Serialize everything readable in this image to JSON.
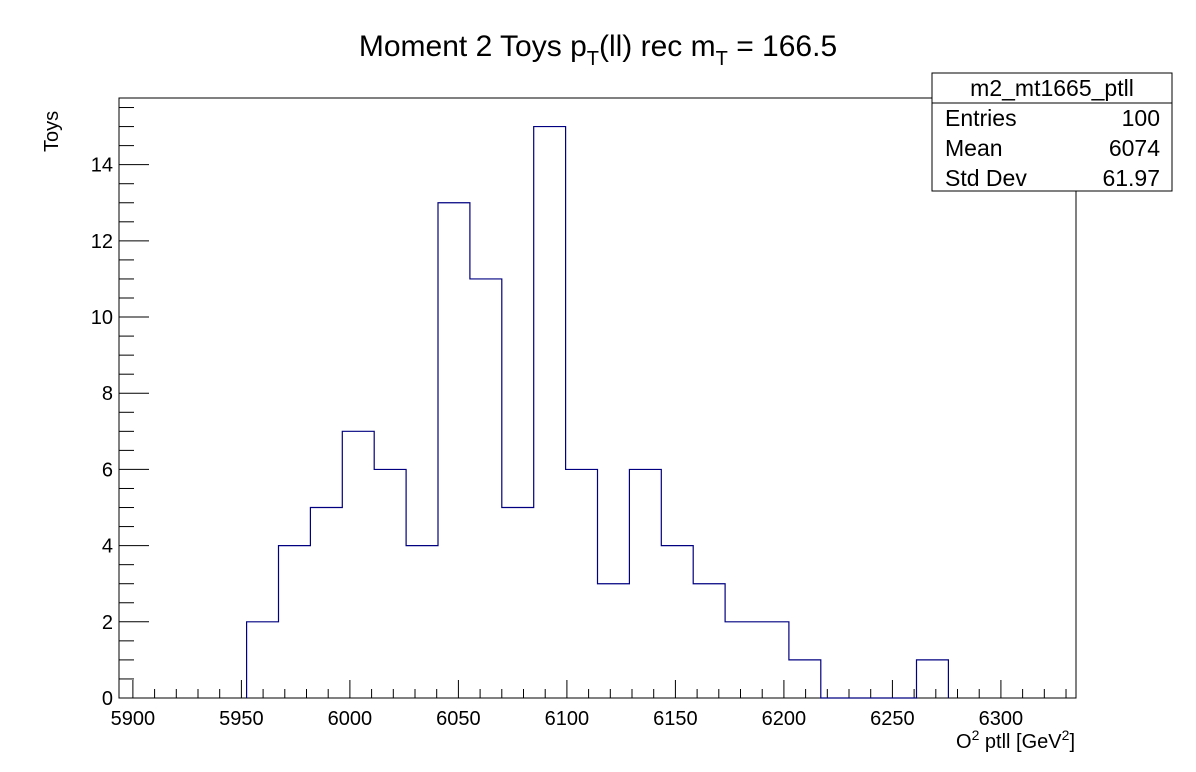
{
  "chart_data": {
    "type": "bar",
    "title": {
      "part1": "Moment 2 Toys  p",
      "sub1": "T",
      "part2": "(ll) rec  m",
      "sub2": "T",
      "part3": " = 166.5"
    },
    "xlabel": {
      "pre": "O",
      "sup1": "2",
      "mid": " ptll [GeV",
      "sup2": "2",
      "post": "]"
    },
    "ylabel": "Toys",
    "xlim": [
      5893.6,
      6334.6
    ],
    "ylim": [
      0,
      15.75
    ],
    "bin_edges": [
      5952.4,
      5967.1,
      5981.8,
      5996.5,
      6011.2,
      6025.9,
      6040.6,
      6055.3,
      6070.0,
      6084.7,
      6099.4,
      6114.1,
      6128.8,
      6143.5,
      6158.2,
      6172.9,
      6187.6,
      6202.3,
      6217.0,
      6231.7,
      6246.4,
      6261.1,
      6275.8
    ],
    "values": [
      2,
      4,
      5,
      7,
      6,
      4,
      13,
      11,
      5,
      15,
      6,
      3,
      6,
      4,
      3,
      2,
      2,
      1,
      0,
      0,
      0,
      1
    ],
    "x_ticks": [
      5900,
      5950,
      6000,
      6050,
      6100,
      6150,
      6200,
      6250,
      6300
    ],
    "y_ticks": [
      0,
      2,
      4,
      6,
      8,
      10,
      12,
      14
    ],
    "line_color": "#000080",
    "grid": false,
    "legend": "none"
  },
  "stats_box": {
    "name": "m2_mt1665_ptll",
    "rows": [
      {
        "label": "Entries",
        "value": "100"
      },
      {
        "label": "Mean",
        "value": "6074"
      },
      {
        "label": "Std Dev",
        "value": "61.97"
      }
    ]
  }
}
